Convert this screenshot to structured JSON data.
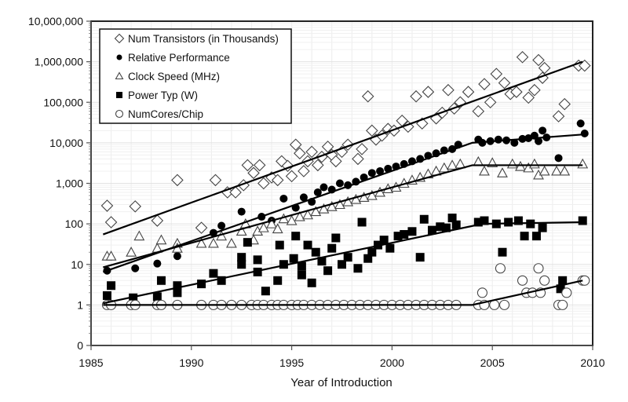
{
  "chart_data": {
    "type": "scatter",
    "title": "",
    "xlabel": "Year of Introduction",
    "ylabel": "",
    "xlim": [
      1985,
      2010
    ],
    "x_ticks": [
      1985,
      1990,
      1995,
      2000,
      2005,
      2010
    ],
    "x_tick_labels": [
      "1985",
      "1990",
      "1995",
      "2000",
      "2005",
      "2010"
    ],
    "y_scale": "log",
    "ylim": [
      0.1,
      10000000
    ],
    "y_ticks": [
      0.1,
      1,
      10,
      100,
      1000,
      10000,
      100000,
      1000000,
      10000000
    ],
    "y_tick_labels": [
      "0",
      "1",
      "10",
      "100",
      "1,000",
      "10,000",
      "100,000",
      "1,000,000",
      "10,000,000"
    ],
    "grid": true,
    "legend_position": "top-left",
    "series": [
      {
        "name": "Num Transistors (in Thousands)",
        "marker": "diamond-open",
        "points": [
          [
            1985.8,
            280
          ],
          [
            1986.0,
            110
          ],
          [
            1987.2,
            270
          ],
          [
            1988.3,
            120
          ],
          [
            1989.3,
            1200
          ],
          [
            1990.5,
            80
          ],
          [
            1991.2,
            1200
          ],
          [
            1991.8,
            600
          ],
          [
            1992.2,
            600
          ],
          [
            1992.6,
            900
          ],
          [
            1992.8,
            2800
          ],
          [
            1993.1,
            1800
          ],
          [
            1993.4,
            2800
          ],
          [
            1993.6,
            1000
          ],
          [
            1994.0,
            1400
          ],
          [
            1994.3,
            1200
          ],
          [
            1994.5,
            3500
          ],
          [
            1994.8,
            2700
          ],
          [
            1995.0,
            1500
          ],
          [
            1995.2,
            9000
          ],
          [
            1995.4,
            5500
          ],
          [
            1995.6,
            2000
          ],
          [
            1995.8,
            3500
          ],
          [
            1996.0,
            6000
          ],
          [
            1996.3,
            2800
          ],
          [
            1996.5,
            4500
          ],
          [
            1996.8,
            8000
          ],
          [
            1997.0,
            5000
          ],
          [
            1997.2,
            3500
          ],
          [
            1997.5,
            6000
          ],
          [
            1997.8,
            9000
          ],
          [
            1998.3,
            4000
          ],
          [
            1998.5,
            7000
          ],
          [
            1998.8,
            140000
          ],
          [
            1999.0,
            20000
          ],
          [
            1999.2,
            12000
          ],
          [
            1999.5,
            15000
          ],
          [
            1999.8,
            22000
          ],
          [
            2000.1,
            20000
          ],
          [
            2000.5,
            35000
          ],
          [
            2000.8,
            25000
          ],
          [
            2001.2,
            140000
          ],
          [
            2001.5,
            30000
          ],
          [
            2001.8,
            180000
          ],
          [
            2002.2,
            40000
          ],
          [
            2002.5,
            55000
          ],
          [
            2002.8,
            200000
          ],
          [
            2003.1,
            70000
          ],
          [
            2003.4,
            100000
          ],
          [
            2003.8,
            180000
          ],
          [
            2004.3,
            60000
          ],
          [
            2004.6,
            280000
          ],
          [
            2004.9,
            100000
          ],
          [
            2005.2,
            500000
          ],
          [
            2005.6,
            300000
          ],
          [
            2005.9,
            160000
          ],
          [
            2006.2,
            180000
          ],
          [
            2006.5,
            1300000
          ],
          [
            2006.8,
            130000
          ],
          [
            2007.1,
            200000
          ],
          [
            2007.3,
            1100000
          ],
          [
            2007.5,
            400000
          ],
          [
            2007.6,
            700000
          ],
          [
            2008.3,
            45000
          ],
          [
            2008.6,
            90000
          ],
          [
            2009.3,
            800000
          ],
          [
            2009.6,
            800000
          ]
        ],
        "trend": [
          [
            1985.6,
            55
          ],
          [
            2009.5,
            1000000
          ]
        ]
      },
      {
        "name": "Relative Performance",
        "marker": "circle-filled",
        "points": [
          [
            1985.8,
            7
          ],
          [
            1987.2,
            8
          ],
          [
            1988.3,
            10.5
          ],
          [
            1989.3,
            16
          ],
          [
            1991.1,
            60
          ],
          [
            1991.5,
            90
          ],
          [
            1992.5,
            200
          ],
          [
            1993.5,
            150
          ],
          [
            1994.0,
            120
          ],
          [
            1994.6,
            420
          ],
          [
            1995.2,
            250
          ],
          [
            1995.6,
            450
          ],
          [
            1996.0,
            350
          ],
          [
            1996.3,
            600
          ],
          [
            1996.6,
            800
          ],
          [
            1997.0,
            700
          ],
          [
            1997.4,
            1000
          ],
          [
            1997.8,
            900
          ],
          [
            1998.2,
            1100
          ],
          [
            1998.6,
            1400
          ],
          [
            1999.0,
            1800
          ],
          [
            1999.4,
            2000
          ],
          [
            1999.8,
            2300
          ],
          [
            2000.2,
            2600
          ],
          [
            2000.6,
            3000
          ],
          [
            2001.0,
            3500
          ],
          [
            2001.4,
            4000
          ],
          [
            2001.8,
            4800
          ],
          [
            2002.2,
            5500
          ],
          [
            2002.6,
            6500
          ],
          [
            2003.0,
            7000
          ],
          [
            2003.3,
            9000
          ],
          [
            2004.3,
            12000
          ],
          [
            2004.5,
            10000
          ],
          [
            2004.9,
            11000
          ],
          [
            2005.3,
            12000
          ],
          [
            2005.7,
            11500
          ],
          [
            2006.1,
            10000
          ],
          [
            2006.5,
            12500
          ],
          [
            2006.8,
            13000
          ],
          [
            2007.1,
            15000
          ],
          [
            2007.3,
            11000
          ],
          [
            2007.5,
            20000
          ],
          [
            2007.7,
            13500
          ],
          [
            2008.3,
            4200
          ],
          [
            2009.4,
            30000
          ],
          [
            2009.6,
            17000
          ]
        ],
        "trend": [
          [
            1985.6,
            6.5
          ],
          [
            2004.0,
            10000
          ],
          [
            2009.5,
            16000
          ]
        ]
      },
      {
        "name": "Clock Speed (MHz)",
        "marker": "triangle-open",
        "points": [
          [
            1985.8,
            16
          ],
          [
            1986.0,
            16
          ],
          [
            1987.0,
            20
          ],
          [
            1987.4,
            50
          ],
          [
            1988.3,
            25
          ],
          [
            1988.5,
            40
          ],
          [
            1989.3,
            33
          ],
          [
            1989.3,
            25
          ],
          [
            1990.5,
            33
          ],
          [
            1991.1,
            33
          ],
          [
            1991.5,
            50
          ],
          [
            1992.0,
            33
          ],
          [
            1992.5,
            66
          ],
          [
            1992.7,
            100
          ],
          [
            1993.1,
            40
          ],
          [
            1993.3,
            66
          ],
          [
            1993.6,
            80
          ],
          [
            1994.0,
            100
          ],
          [
            1994.3,
            75
          ],
          [
            1994.6,
            133
          ],
          [
            1995.0,
            120
          ],
          [
            1995.4,
            150
          ],
          [
            1995.8,
            166
          ],
          [
            1996.2,
            200
          ],
          [
            1996.6,
            233
          ],
          [
            1997.0,
            266
          ],
          [
            1997.4,
            300
          ],
          [
            1997.8,
            350
          ],
          [
            1998.2,
            400
          ],
          [
            1998.6,
            450
          ],
          [
            1999.0,
            500
          ],
          [
            1999.4,
            600
          ],
          [
            1999.8,
            733
          ],
          [
            2000.2,
            800
          ],
          [
            2000.6,
            1000
          ],
          [
            2001.0,
            1200
          ],
          [
            2001.4,
            1400
          ],
          [
            2001.8,
            1700
          ],
          [
            2002.2,
            2000
          ],
          [
            2002.6,
            2400
          ],
          [
            2003.0,
            2800
          ],
          [
            2003.4,
            3000
          ],
          [
            2004.3,
            3400
          ],
          [
            2004.6,
            2000
          ],
          [
            2005.0,
            3200
          ],
          [
            2005.5,
            1800
          ],
          [
            2006.0,
            3000
          ],
          [
            2006.4,
            2600
          ],
          [
            2006.8,
            2400
          ],
          [
            2007.1,
            3000
          ],
          [
            2007.3,
            1600
          ],
          [
            2007.6,
            2000
          ],
          [
            2008.2,
            2000
          ],
          [
            2008.6,
            2000
          ],
          [
            2009.5,
            3000
          ]
        ],
        "trend": [
          [
            1985.6,
            8.5
          ],
          [
            2004.0,
            2800
          ],
          [
            2009.5,
            2800
          ]
        ]
      },
      {
        "name": "Power Typ (W)",
        "marker": "square-filled",
        "points": [
          [
            1985.8,
            1.7
          ],
          [
            1986.0,
            3
          ],
          [
            1987.1,
            1.5
          ],
          [
            1988.3,
            1.6
          ],
          [
            1988.5,
            4
          ],
          [
            1989.3,
            3
          ],
          [
            1989.3,
            2
          ],
          [
            1990.5,
            3.3
          ],
          [
            1991.1,
            6
          ],
          [
            1991.5,
            4
          ],
          [
            1992.5,
            15
          ],
          [
            1992.5,
            10
          ],
          [
            1992.8,
            35
          ],
          [
            1993.3,
            13
          ],
          [
            1993.3,
            6.5
          ],
          [
            1993.7,
            2.2
          ],
          [
            1994.3,
            4
          ],
          [
            1994.4,
            30
          ],
          [
            1994.6,
            10
          ],
          [
            1995.1,
            14
          ],
          [
            1995.2,
            50
          ],
          [
            1995.5,
            9
          ],
          [
            1995.5,
            5.5
          ],
          [
            1995.8,
            30
          ],
          [
            1996.0,
            3.5
          ],
          [
            1996.2,
            20
          ],
          [
            1996.5,
            12
          ],
          [
            1996.8,
            7
          ],
          [
            1997.0,
            25
          ],
          [
            1997.2,
            45
          ],
          [
            1997.5,
            10
          ],
          [
            1997.8,
            15
          ],
          [
            1998.3,
            8
          ],
          [
            1998.5,
            110
          ],
          [
            1998.8,
            14
          ],
          [
            1999.0,
            20
          ],
          [
            1999.3,
            30
          ],
          [
            1999.6,
            40
          ],
          [
            1999.9,
            25
          ],
          [
            2000.3,
            50
          ],
          [
            2000.6,
            55
          ],
          [
            2001.0,
            65
          ],
          [
            2001.4,
            15
          ],
          [
            2001.6,
            130
          ],
          [
            2002.0,
            70
          ],
          [
            2002.4,
            85
          ],
          [
            2002.7,
            80
          ],
          [
            2003.0,
            140
          ],
          [
            2003.2,
            95
          ],
          [
            2004.3,
            110
          ],
          [
            2004.6,
            120
          ],
          [
            2005.2,
            100
          ],
          [
            2005.5,
            20
          ],
          [
            2005.8,
            110
          ],
          [
            2006.3,
            120
          ],
          [
            2006.6,
            50
          ],
          [
            2006.9,
            100
          ],
          [
            2007.2,
            50
          ],
          [
            2007.5,
            80
          ],
          [
            2008.5,
            4
          ],
          [
            2008.4,
            2.5
          ],
          [
            2009.5,
            120
          ]
        ],
        "trend": [
          [
            1985.6,
            1.1
          ],
          [
            2004.5,
            100
          ],
          [
            2009.5,
            110
          ]
        ]
      },
      {
        "name": "NumCores/Chip",
        "marker": "circle-open",
        "points": [
          [
            1985.8,
            1
          ],
          [
            1986.0,
            1
          ],
          [
            1987.0,
            1
          ],
          [
            1987.2,
            1
          ],
          [
            1988.3,
            1
          ],
          [
            1988.5,
            1
          ],
          [
            1989.3,
            1
          ],
          [
            1990.5,
            1
          ],
          [
            1991.1,
            1
          ],
          [
            1991.5,
            1
          ],
          [
            1992.0,
            1
          ],
          [
            1992.5,
            1
          ],
          [
            1993.0,
            1
          ],
          [
            1993.3,
            1
          ],
          [
            1993.6,
            1
          ],
          [
            1994.0,
            1
          ],
          [
            1994.3,
            1
          ],
          [
            1994.6,
            1
          ],
          [
            1995.0,
            1
          ],
          [
            1995.3,
            1
          ],
          [
            1995.6,
            1
          ],
          [
            1996.0,
            1
          ],
          [
            1996.4,
            1
          ],
          [
            1996.8,
            1
          ],
          [
            1997.2,
            1
          ],
          [
            1997.6,
            1
          ],
          [
            1998.0,
            1
          ],
          [
            1998.4,
            1
          ],
          [
            1998.8,
            1
          ],
          [
            1999.2,
            1
          ],
          [
            1999.6,
            1
          ],
          [
            2000.0,
            1
          ],
          [
            2000.4,
            1
          ],
          [
            2000.8,
            1
          ],
          [
            2001.2,
            1
          ],
          [
            2001.6,
            1
          ],
          [
            2002.0,
            1
          ],
          [
            2002.4,
            1
          ],
          [
            2002.8,
            1
          ],
          [
            2003.2,
            1
          ],
          [
            2004.3,
            1
          ],
          [
            2004.6,
            1
          ],
          [
            2005.1,
            1
          ],
          [
            2005.6,
            1
          ],
          [
            2004.5,
            2
          ],
          [
            2005.4,
            8
          ],
          [
            2006.5,
            4
          ],
          [
            2006.7,
            2
          ],
          [
            2007.0,
            2
          ],
          [
            2007.3,
            8
          ],
          [
            2007.4,
            2
          ],
          [
            2007.6,
            4
          ],
          [
            2008.3,
            1
          ],
          [
            2008.5,
            1
          ],
          [
            2008.7,
            2
          ],
          [
            2009.5,
            4
          ],
          [
            2009.6,
            4
          ]
        ],
        "trend": [
          [
            1985.6,
            1
          ],
          [
            2004.0,
            1
          ],
          [
            2009.5,
            4
          ]
        ]
      }
    ]
  }
}
